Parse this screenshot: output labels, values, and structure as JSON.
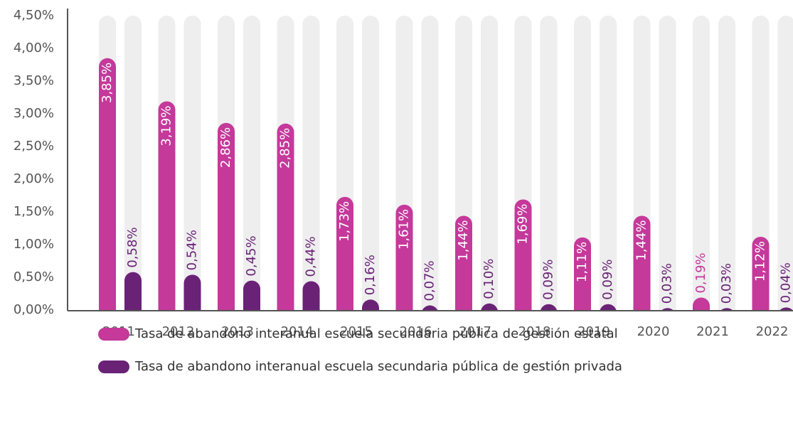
{
  "chart_data": {
    "type": "bar",
    "categories": [
      "2011",
      "2012",
      "2013",
      "2014",
      "2015",
      "2016",
      "2017",
      "2018",
      "2019",
      "2020",
      "2021",
      "2022"
    ],
    "series": [
      {
        "name": "Tasa de abandono interanual escuela secundaria pública de gestión estatal",
        "color": "#c4399a",
        "values": [
          3.85,
          3.19,
          2.86,
          2.85,
          1.73,
          1.61,
          1.44,
          1.69,
          1.11,
          1.44,
          0.19,
          1.12
        ],
        "value_labels": [
          "3,85%",
          "3,19%",
          "2,86%",
          "2,85%",
          "1,73%",
          "1,61%",
          "1,44%",
          "1,69%",
          "1,11%",
          "1,44%",
          "0,19%",
          "1,12%"
        ]
      },
      {
        "name": "Tasa de abandono interanual escuela secundaria pública de gestión privada",
        "color": "#6a2277",
        "values": [
          0.58,
          0.54,
          0.45,
          0.44,
          0.16,
          0.07,
          0.1,
          0.09,
          0.09,
          0.03,
          0.03,
          0.04
        ],
        "value_labels": [
          "0,58%",
          "0,54%",
          "0,45%",
          "0,44%",
          "0,16%",
          "0,07%",
          "0,10%",
          "0,09%",
          "0,09%",
          "0,03%",
          "0,03%",
          "0,04%"
        ]
      }
    ],
    "ylim": [
      0,
      4.5
    ],
    "yticks": [
      {
        "value": 0,
        "label": "0,00%"
      },
      {
        "value": 0.5,
        "label": "0,50%"
      },
      {
        "value": 1,
        "label": "1,00%"
      },
      {
        "value": 1.5,
        "label": "1,50%"
      },
      {
        "value": 2,
        "label": "2,00%"
      },
      {
        "value": 2.5,
        "label": "2,50%"
      },
      {
        "value": 3,
        "label": "3,00%"
      },
      {
        "value": 3.5,
        "label": "3,50%"
      },
      {
        "value": 4,
        "label": "4,00%"
      },
      {
        "value": 4.5,
        "label": "4,50%"
      }
    ],
    "grid": false
  }
}
